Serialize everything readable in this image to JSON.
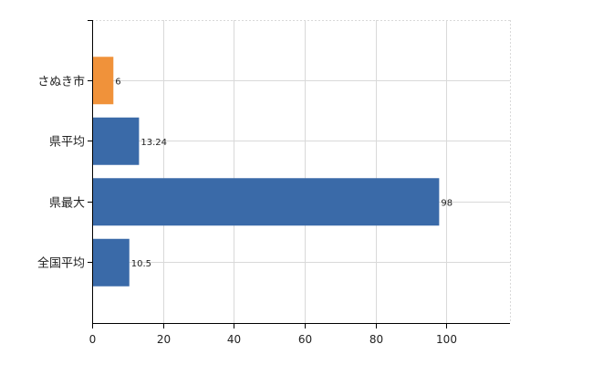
{
  "chart_data": {
    "type": "bar",
    "orientation": "horizontal",
    "categories": [
      "さぬき市",
      "県平均",
      "県最大",
      "全国平均"
    ],
    "values": [
      6,
      13.24,
      98,
      10.5
    ],
    "value_labels": [
      "6",
      "13.24",
      "98",
      "10.5"
    ],
    "colors": [
      "#f0923a",
      "#3a6aa8",
      "#3a6aa8",
      "#3a6aa8"
    ],
    "title": "",
    "xlabel": "",
    "ylabel": "",
    "xlim": [
      0,
      118
    ],
    "xticks": [
      0,
      20,
      40,
      60,
      80,
      100
    ],
    "grid": true,
    "legend": "none"
  },
  "colors": {
    "highlight": "#f0923a",
    "bar": "#3a6aa8",
    "grid": "#d9d9d9",
    "axis": "#000000"
  }
}
